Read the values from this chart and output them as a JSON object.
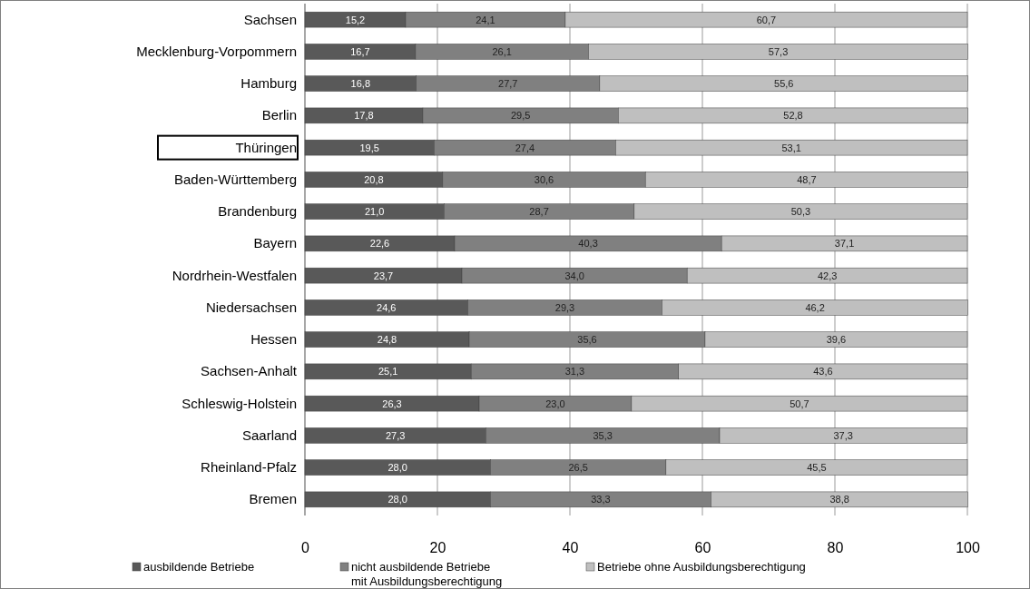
{
  "chart_data": {
    "type": "bar",
    "orientation": "horizontal",
    "stacked": true,
    "grid": "x",
    "legend": "bottom",
    "xlim": [
      0,
      100
    ],
    "xticks": [
      0,
      20,
      40,
      60,
      80,
      100
    ],
    "categories": [
      "Sachsen",
      "Mecklenburg-Vorpommern",
      "Hamburg",
      "Berlin",
      "Thüringen",
      "Baden-Württemberg",
      "Brandenburg",
      "Bayern",
      "Nordrhein-Westfalen",
      "Niedersachsen",
      "Hessen",
      "Sachsen-Anhalt",
      "Schleswig-Holstein",
      "Saarland",
      "Rheinland-Pfalz",
      "Bremen"
    ],
    "series": [
      {
        "name": "ausbildende Betriebe",
        "color": "#595959",
        "values": [
          15.2,
          16.7,
          16.8,
          17.8,
          19.5,
          20.8,
          21.0,
          22.6,
          23.7,
          24.6,
          24.8,
          25.1,
          26.3,
          27.3,
          28.0,
          28.0
        ],
        "value_labels": [
          "15,2",
          "16,7",
          "16,8",
          "17,8",
          "19,5",
          "20,8",
          "21,0",
          "22,6",
          "23,7",
          "24,6",
          "24,8",
          "25,1",
          "26,3",
          "27,3",
          "28,0",
          "28,0"
        ]
      },
      {
        "name": "nicht ausbildende Betriebe\nmit Ausbildungsberechtigung",
        "color": "#808080",
        "values": [
          24.1,
          26.1,
          27.7,
          29.5,
          27.4,
          30.6,
          28.7,
          40.3,
          34.0,
          29.3,
          35.6,
          31.3,
          23.0,
          35.3,
          26.5,
          33.3
        ],
        "value_labels": [
          "24,1",
          "26,1",
          "27,7",
          "29,5",
          "27,4",
          "30,6",
          "28,7",
          "40,3",
          "34,0",
          "29,3",
          "35,6",
          "31,3",
          "23,0",
          "35,3",
          "26,5",
          "33,3"
        ]
      },
      {
        "name": "Betriebe ohne Ausbildungsberechtigung",
        "color": "#bfbfbf",
        "values": [
          60.7,
          57.3,
          55.6,
          52.8,
          53.1,
          48.7,
          50.3,
          37.1,
          42.3,
          46.2,
          39.6,
          43.6,
          50.7,
          37.3,
          45.5,
          38.8
        ],
        "value_labels": [
          "60,7",
          "57,3",
          "55,6",
          "52,8",
          "53,1",
          "48,7",
          "50,3",
          "37,1",
          "42,3",
          "46,2",
          "39,6",
          "43,6",
          "50,7",
          "37,3",
          "45,5",
          "38,8"
        ]
      }
    ]
  }
}
